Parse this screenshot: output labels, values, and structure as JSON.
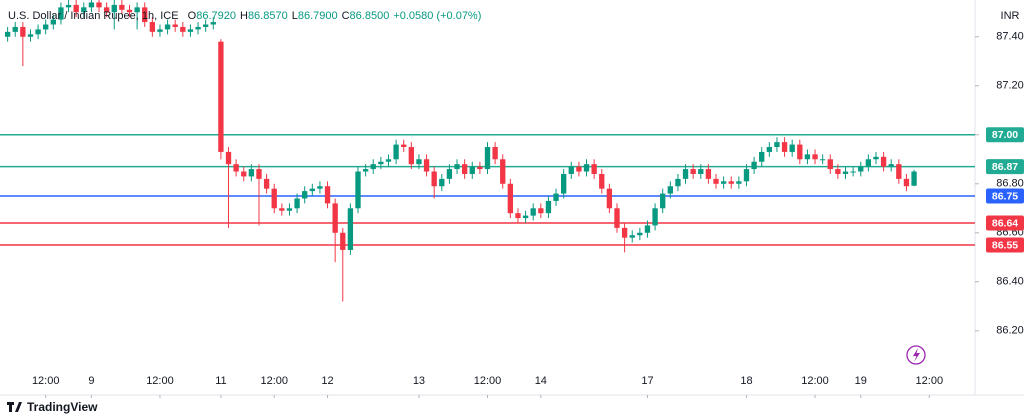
{
  "chart_data": {
    "type": "candlestick",
    "title": "U.S. Dollar / Indian Rupee, 1h, ICE",
    "ohlc_header": [
      {
        "label": "O",
        "value": "86.7920"
      },
      {
        "label": "H",
        "value": "86.8570"
      },
      {
        "label": "L",
        "value": "86.7900"
      },
      {
        "label": "C",
        "value": "86.8500"
      }
    ],
    "change": "+0.0580 (+0.07%)",
    "currency": "INR",
    "brand": "TradingView",
    "up_color": "#089981",
    "down_color": "#f23645",
    "open": [
      87.4,
      87.42,
      87.44,
      87.4,
      87.41,
      87.43,
      87.45,
      87.47,
      87.52,
      87.53,
      87.5,
      87.52,
      87.54,
      87.52,
      87.5,
      87.53,
      87.51,
      87.5,
      87.52,
      87.46,
      87.42,
      87.43,
      87.45,
      87.44,
      87.42,
      87.43,
      87.44,
      87.45,
      87.38,
      86.93,
      86.88,
      86.85,
      86.83,
      86.86,
      86.82,
      86.78,
      86.7,
      86.69,
      86.7,
      86.74,
      86.77,
      86.78,
      86.79,
      86.72,
      86.6,
      86.53,
      86.7,
      86.85,
      86.86,
      86.88,
      86.89,
      86.9,
      86.96,
      86.95,
      86.88,
      86.9,
      86.85,
      86.79,
      86.82,
      86.86,
      86.88,
      86.84,
      86.87,
      86.86,
      86.95,
      86.9,
      86.8,
      86.68,
      86.66,
      86.67,
      86.7,
      86.68,
      86.73,
      86.76,
      86.84,
      86.87,
      86.85,
      86.88,
      86.84,
      86.78,
      86.7,
      86.62,
      86.58,
      86.59,
      86.6,
      86.63,
      86.7,
      86.76,
      86.79,
      86.82,
      86.86,
      86.84,
      86.86,
      86.82,
      86.8,
      86.81,
      86.8,
      86.81,
      86.86,
      86.89,
      86.93,
      86.95,
      86.97,
      86.93,
      86.96,
      86.9,
      86.92,
      86.9,
      86.9,
      86.86,
      86.84,
      86.85,
      86.85,
      86.87,
      86.9,
      86.91,
      86.87,
      86.88,
      86.82,
      86.792
    ],
    "high": [
      87.44,
      87.46,
      87.46,
      87.43,
      87.45,
      87.47,
      87.49,
      87.54,
      87.55,
      87.55,
      87.54,
      87.55,
      87.55,
      87.54,
      87.55,
      87.55,
      87.53,
      87.54,
      87.54,
      87.48,
      87.45,
      87.47,
      87.47,
      87.46,
      87.45,
      87.46,
      87.47,
      87.48,
      87.39,
      86.95,
      86.9,
      86.87,
      86.88,
      86.88,
      86.84,
      86.8,
      86.72,
      86.72,
      86.76,
      86.79,
      86.8,
      86.81,
      86.81,
      86.74,
      86.62,
      86.72,
      86.87,
      86.88,
      86.9,
      86.91,
      86.92,
      86.98,
      86.98,
      86.97,
      86.92,
      86.92,
      86.87,
      86.84,
      86.88,
      86.9,
      86.9,
      86.89,
      86.89,
      86.97,
      86.97,
      86.92,
      86.82,
      86.7,
      86.69,
      86.72,
      86.72,
      86.75,
      86.78,
      86.86,
      86.89,
      86.89,
      86.9,
      86.9,
      86.86,
      86.8,
      86.72,
      86.64,
      86.61,
      86.62,
      86.65,
      86.72,
      86.78,
      86.81,
      86.84,
      86.88,
      86.88,
      86.88,
      86.88,
      86.84,
      86.83,
      86.83,
      86.83,
      86.88,
      86.91,
      86.95,
      86.97,
      86.99,
      86.99,
      86.98,
      86.98,
      86.94,
      86.94,
      86.92,
      86.92,
      86.88,
      86.87,
      86.87,
      86.89,
      86.92,
      86.93,
      86.93,
      86.9,
      86.9,
      86.84,
      86.857
    ],
    "low": [
      87.38,
      87.4,
      87.28,
      87.38,
      87.39,
      87.41,
      87.43,
      87.45,
      87.5,
      87.48,
      87.48,
      87.5,
      87.5,
      87.48,
      87.43,
      87.49,
      87.48,
      87.43,
      87.44,
      87.4,
      87.4,
      87.41,
      87.42,
      87.4,
      87.4,
      87.41,
      87.42,
      87.43,
      86.9,
      86.62,
      86.83,
      86.81,
      86.81,
      86.63,
      86.76,
      86.68,
      86.67,
      86.67,
      86.68,
      86.72,
      86.75,
      86.76,
      86.7,
      86.48,
      86.32,
      86.51,
      86.68,
      86.83,
      86.84,
      86.86,
      86.87,
      86.88,
      86.93,
      86.86,
      86.86,
      86.83,
      86.74,
      86.77,
      86.8,
      86.84,
      86.82,
      86.82,
      86.84,
      86.84,
      86.88,
      86.78,
      86.66,
      86.64,
      86.64,
      86.65,
      86.66,
      86.66,
      86.71,
      86.74,
      86.82,
      86.83,
      86.83,
      86.82,
      86.76,
      86.68,
      86.6,
      86.52,
      86.56,
      86.57,
      86.58,
      86.61,
      86.68,
      86.74,
      86.77,
      86.8,
      86.82,
      86.82,
      86.8,
      86.78,
      86.78,
      86.78,
      86.78,
      86.79,
      86.84,
      86.87,
      86.91,
      86.93,
      86.91,
      86.91,
      86.88,
      86.88,
      86.88,
      86.88,
      86.84,
      86.82,
      86.82,
      86.83,
      86.83,
      86.85,
      86.88,
      86.85,
      86.85,
      86.8,
      86.77,
      86.79
    ],
    "close": [
      87.42,
      87.44,
      87.4,
      87.41,
      87.43,
      87.45,
      87.47,
      87.52,
      87.53,
      87.5,
      87.52,
      87.54,
      87.52,
      87.5,
      87.53,
      87.51,
      87.5,
      87.52,
      87.46,
      87.42,
      87.43,
      87.45,
      87.44,
      87.42,
      87.43,
      87.44,
      87.45,
      87.46,
      86.93,
      86.88,
      86.85,
      86.83,
      86.86,
      86.82,
      86.78,
      86.7,
      86.69,
      86.7,
      86.74,
      86.77,
      86.78,
      86.79,
      86.72,
      86.6,
      86.53,
      86.7,
      86.85,
      86.86,
      86.88,
      86.89,
      86.9,
      86.96,
      86.95,
      86.88,
      86.9,
      86.85,
      86.79,
      86.82,
      86.86,
      86.88,
      86.84,
      86.87,
      86.86,
      86.95,
      86.9,
      86.8,
      86.68,
      86.66,
      86.67,
      86.7,
      86.68,
      86.73,
      86.76,
      86.84,
      86.87,
      86.85,
      86.88,
      86.84,
      86.78,
      86.7,
      86.62,
      86.58,
      86.59,
      86.6,
      86.63,
      86.7,
      86.76,
      86.79,
      86.82,
      86.86,
      86.84,
      86.86,
      86.82,
      86.8,
      86.81,
      86.8,
      86.81,
      86.86,
      86.89,
      86.93,
      86.95,
      86.97,
      86.93,
      86.96,
      86.9,
      86.92,
      86.9,
      86.9,
      86.86,
      86.84,
      86.85,
      86.85,
      86.87,
      86.9,
      86.91,
      86.87,
      86.88,
      86.82,
      86.79,
      86.85
    ],
    "xlim": [
      -1,
      127
    ],
    "xticks": [
      {
        "value": 5,
        "label": "12:00"
      },
      {
        "value": 11,
        "label": "9"
      },
      {
        "value": 20,
        "label": "12:00"
      },
      {
        "value": 28,
        "label": "11"
      },
      {
        "value": 35,
        "label": "12:00"
      },
      {
        "value": 42,
        "label": "12"
      },
      {
        "value": 54,
        "label": "13"
      },
      {
        "value": 63,
        "label": "12:00"
      },
      {
        "value": 70,
        "label": "14"
      },
      {
        "value": 84,
        "label": "17"
      },
      {
        "value": 97,
        "label": "18"
      },
      {
        "value": 106,
        "label": "12:00"
      },
      {
        "value": 112,
        "label": "19"
      },
      {
        "value": 121,
        "label": "12:00"
      }
    ],
    "ylim": [
      86.04,
      87.55
    ],
    "yticks": [
      {
        "value": 86.2,
        "label": "86.20"
      },
      {
        "value": 86.4,
        "label": "86.40"
      },
      {
        "value": 86.6,
        "label": "86.60"
      },
      {
        "value": 86.8,
        "label": "86.80"
      },
      {
        "value": 87.0,
        "label": "87.00"
      },
      {
        "value": 87.2,
        "label": "87.20"
      },
      {
        "value": 87.4,
        "label": "87.40"
      }
    ],
    "grid": false,
    "levels": [
      {
        "value": 87.0,
        "label": "87.00",
        "color": "#22ab94"
      },
      {
        "value": 86.87,
        "label": "86.87",
        "color": "#22ab94"
      },
      {
        "value": 86.75,
        "label": "86.75",
        "color": "#2962ff"
      },
      {
        "value": 86.64,
        "label": "86.64",
        "color": "#f23645"
      },
      {
        "value": 86.55,
        "label": "86.55",
        "color": "#f23645"
      }
    ]
  }
}
